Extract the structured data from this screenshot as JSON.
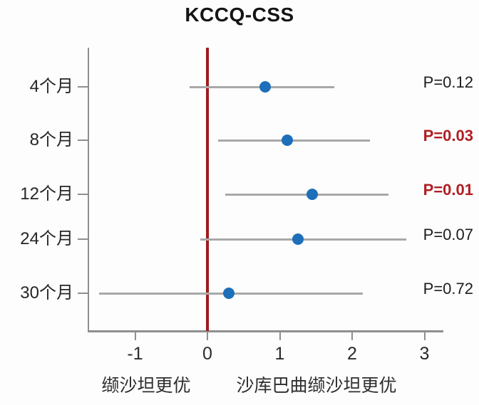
{
  "chart_data": {
    "type": "scatter",
    "subtype": "forest-plot",
    "title": "KCCQ-CSS",
    "categories": [
      "4个月",
      "8个月",
      "12个月",
      "24个月",
      "30个月"
    ],
    "points": [
      {
        "category": "4个月",
        "estimate": 0.8,
        "ci_low": -0.25,
        "ci_high": 1.75,
        "p_label": "P=0.12",
        "significant": false
      },
      {
        "category": "8个月",
        "estimate": 1.1,
        "ci_low": 0.15,
        "ci_high": 2.25,
        "p_label": "P=0.03",
        "significant": true
      },
      {
        "category": "12个月",
        "estimate": 1.45,
        "ci_low": 0.25,
        "ci_high": 2.5,
        "p_label": "P=0.01",
        "significant": true
      },
      {
        "category": "24个月",
        "estimate": 1.25,
        "ci_low": -0.1,
        "ci_high": 2.75,
        "p_label": "P=0.07",
        "significant": false
      },
      {
        "category": "30个月",
        "estimate": 0.3,
        "ci_low": -1.5,
        "ci_high": 2.15,
        "p_label": "P=0.72",
        "significant": false
      }
    ],
    "x_ticks": [
      -1,
      0,
      1,
      2,
      3
    ],
    "xlim": [
      -1.64,
      3.26
    ],
    "reference_line_x": 0,
    "xlabel_left": "缬沙坦更优",
    "xlabel_right": "沙库巴曲缬沙坦更优",
    "grid": false,
    "legend": "none",
    "colors": {
      "point": "#1d6fba",
      "ci_line": "#a8a8a8",
      "axis": "#8f8f8f",
      "reference_line": "#9e1b1e",
      "p_significant": "#b01e23",
      "text": "#2b2b2b"
    }
  }
}
